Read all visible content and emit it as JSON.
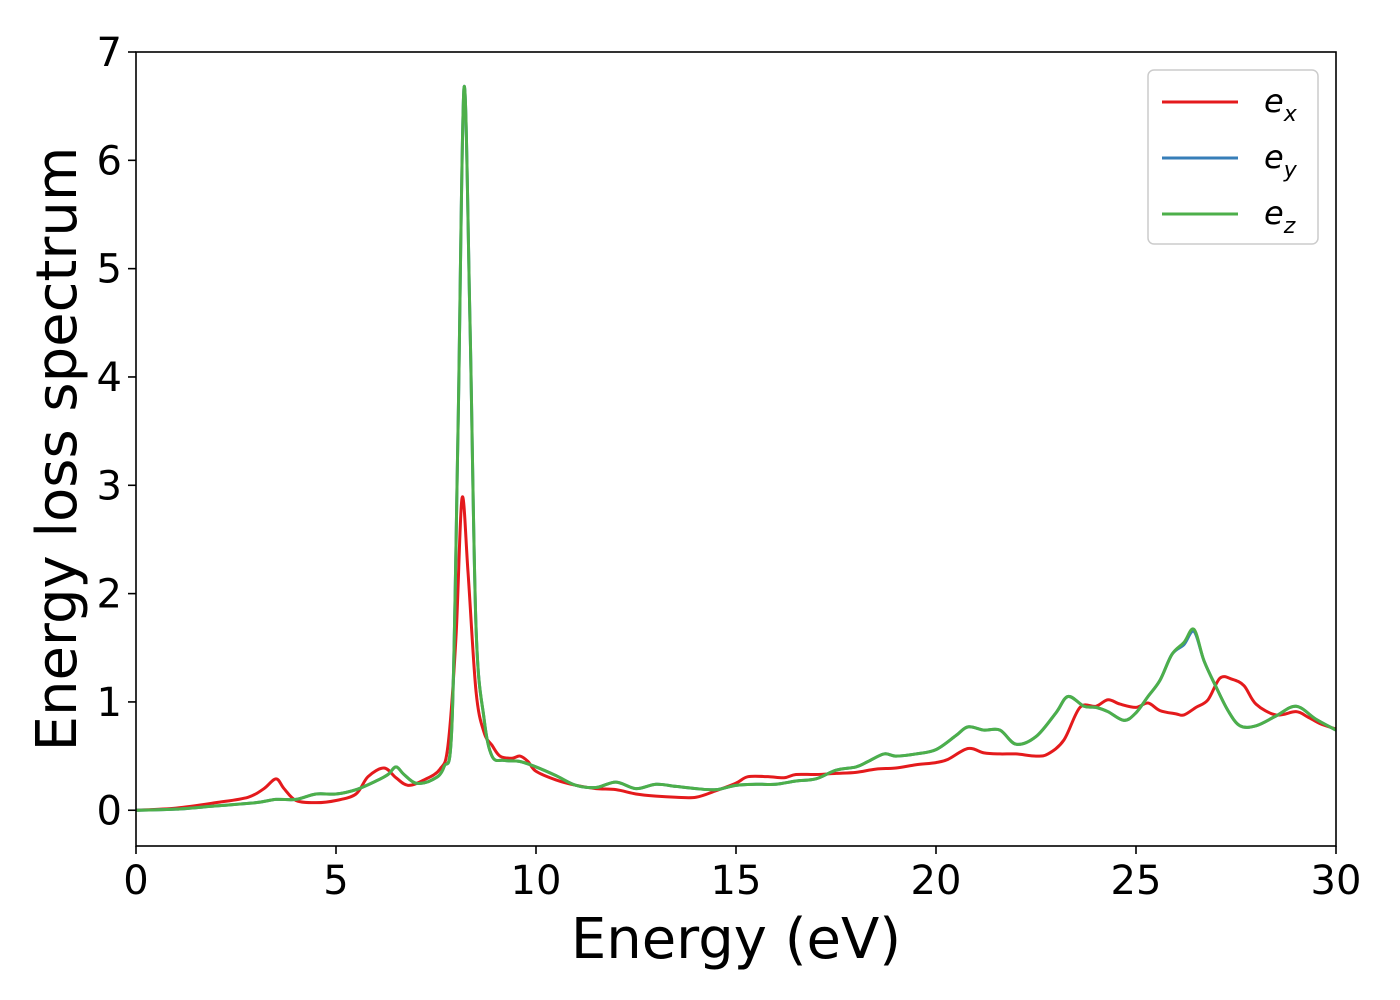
{
  "chart_data": {
    "type": "line",
    "title": "",
    "xlabel": "Energy (eV)",
    "ylabel": "Energy loss spectrum",
    "xlim": [
      0,
      30
    ],
    "ylim": [
      -0.33,
      7
    ],
    "xticks": [
      0,
      5,
      10,
      15,
      20,
      25,
      30
    ],
    "yticks": [
      0,
      1,
      2,
      3,
      4,
      5,
      6,
      7
    ],
    "grid": false,
    "legend_position": "top-right",
    "series": [
      {
        "name": "e_x",
        "label_base": "e",
        "label_sub": "x",
        "color": "#e41a1c",
        "points": [
          [
            0,
            0
          ],
          [
            1,
            0.02
          ],
          [
            2,
            0.07
          ],
          [
            2.8,
            0.12
          ],
          [
            3.2,
            0.2
          ],
          [
            3.5,
            0.29
          ],
          [
            3.7,
            0.2
          ],
          [
            4,
            0.09
          ],
          [
            4.5,
            0.07
          ],
          [
            5,
            0.09
          ],
          [
            5.5,
            0.15
          ],
          [
            5.8,
            0.31
          ],
          [
            6.2,
            0.39
          ],
          [
            6.5,
            0.3
          ],
          [
            6.8,
            0.23
          ],
          [
            7.2,
            0.28
          ],
          [
            7.6,
            0.38
          ],
          [
            7.8,
            0.6
          ],
          [
            8.0,
            1.6
          ],
          [
            8.15,
            2.88
          ],
          [
            8.3,
            2.2
          ],
          [
            8.5,
            1.1
          ],
          [
            8.7,
            0.72
          ],
          [
            8.9,
            0.6
          ],
          [
            9.1,
            0.5
          ],
          [
            9.4,
            0.48
          ],
          [
            9.6,
            0.5
          ],
          [
            9.8,
            0.45
          ],
          [
            10,
            0.36
          ],
          [
            10.5,
            0.28
          ],
          [
            11,
            0.23
          ],
          [
            11.5,
            0.2
          ],
          [
            12,
            0.19
          ],
          [
            12.5,
            0.15
          ],
          [
            13,
            0.13
          ],
          [
            13.5,
            0.12
          ],
          [
            14,
            0.12
          ],
          [
            14.5,
            0.18
          ],
          [
            15,
            0.25
          ],
          [
            15.3,
            0.31
          ],
          [
            15.8,
            0.31
          ],
          [
            16.2,
            0.3
          ],
          [
            16.5,
            0.33
          ],
          [
            17,
            0.33
          ],
          [
            17.5,
            0.34
          ],
          [
            18,
            0.35
          ],
          [
            18.5,
            0.38
          ],
          [
            19,
            0.39
          ],
          [
            19.5,
            0.42
          ],
          [
            20,
            0.44
          ],
          [
            20.3,
            0.47
          ],
          [
            20.8,
            0.57
          ],
          [
            21.2,
            0.53
          ],
          [
            21.6,
            0.52
          ],
          [
            22,
            0.52
          ],
          [
            22.5,
            0.5
          ],
          [
            22.8,
            0.52
          ],
          [
            23.2,
            0.65
          ],
          [
            23.6,
            0.95
          ],
          [
            24,
            0.96
          ],
          [
            24.3,
            1.02
          ],
          [
            24.6,
            0.98
          ],
          [
            25,
            0.95
          ],
          [
            25.3,
            0.99
          ],
          [
            25.6,
            0.92
          ],
          [
            26,
            0.89
          ],
          [
            26.2,
            0.88
          ],
          [
            26.5,
            0.95
          ],
          [
            26.8,
            1.02
          ],
          [
            27.1,
            1.22
          ],
          [
            27.4,
            1.21
          ],
          [
            27.7,
            1.15
          ],
          [
            28,
            0.98
          ],
          [
            28.5,
            0.88
          ],
          [
            29,
            0.91
          ],
          [
            29.3,
            0.86
          ],
          [
            29.6,
            0.8
          ],
          [
            30,
            0.75
          ]
        ]
      },
      {
        "name": "e_y",
        "label_base": "e",
        "label_sub": "y",
        "color": "#377eb8",
        "points": [
          [
            0,
            0
          ],
          [
            1,
            0.01
          ],
          [
            2,
            0.04
          ],
          [
            3,
            0.07
          ],
          [
            3.5,
            0.1
          ],
          [
            4,
            0.1
          ],
          [
            4.5,
            0.15
          ],
          [
            5,
            0.15
          ],
          [
            5.5,
            0.19
          ],
          [
            6,
            0.27
          ],
          [
            6.3,
            0.33
          ],
          [
            6.5,
            0.4
          ],
          [
            6.7,
            0.33
          ],
          [
            7,
            0.25
          ],
          [
            7.4,
            0.28
          ],
          [
            7.7,
            0.4
          ],
          [
            7.9,
            0.8
          ],
          [
            8.05,
            3.5
          ],
          [
            8.2,
            6.67
          ],
          [
            8.35,
            4.5
          ],
          [
            8.5,
            1.7
          ],
          [
            8.7,
            0.85
          ],
          [
            8.9,
            0.5
          ],
          [
            9.2,
            0.46
          ],
          [
            9.6,
            0.45
          ],
          [
            10,
            0.4
          ],
          [
            10.5,
            0.32
          ],
          [
            11,
            0.23
          ],
          [
            11.5,
            0.21
          ],
          [
            12,
            0.26
          ],
          [
            12.5,
            0.2
          ],
          [
            13,
            0.24
          ],
          [
            13.5,
            0.22
          ],
          [
            14,
            0.2
          ],
          [
            14.5,
            0.19
          ],
          [
            15,
            0.23
          ],
          [
            15.5,
            0.24
          ],
          [
            16,
            0.24
          ],
          [
            16.5,
            0.27
          ],
          [
            17,
            0.29
          ],
          [
            17.5,
            0.37
          ],
          [
            18,
            0.4
          ],
          [
            18.3,
            0.45
          ],
          [
            18.7,
            0.52
          ],
          [
            19,
            0.5
          ],
          [
            19.5,
            0.52
          ],
          [
            20,
            0.56
          ],
          [
            20.5,
            0.69
          ],
          [
            20.8,
            0.77
          ],
          [
            21.2,
            0.74
          ],
          [
            21.6,
            0.74
          ],
          [
            22,
            0.61
          ],
          [
            22.5,
            0.68
          ],
          [
            23,
            0.9
          ],
          [
            23.3,
            1.05
          ],
          [
            23.7,
            0.96
          ],
          [
            24,
            0.95
          ],
          [
            24.3,
            0.91
          ],
          [
            24.7,
            0.83
          ],
          [
            25,
            0.9
          ],
          [
            25.3,
            1.05
          ],
          [
            25.6,
            1.2
          ],
          [
            25.9,
            1.44
          ],
          [
            26.2,
            1.53
          ],
          [
            26.45,
            1.65
          ],
          [
            26.7,
            1.38
          ],
          [
            27,
            1.14
          ],
          [
            27.3,
            0.92
          ],
          [
            27.6,
            0.78
          ],
          [
            28,
            0.78
          ],
          [
            28.5,
            0.87
          ],
          [
            29,
            0.96
          ],
          [
            29.5,
            0.84
          ],
          [
            30,
            0.74
          ]
        ]
      },
      {
        "name": "e_z",
        "label_base": "e",
        "label_sub": "z",
        "color": "#4daf4a",
        "points": [
          [
            0,
            0
          ],
          [
            1,
            0.01
          ],
          [
            2,
            0.04
          ],
          [
            3,
            0.07
          ],
          [
            3.5,
            0.1
          ],
          [
            4,
            0.1
          ],
          [
            4.5,
            0.15
          ],
          [
            5,
            0.15
          ],
          [
            5.5,
            0.19
          ],
          [
            6,
            0.27
          ],
          [
            6.3,
            0.33
          ],
          [
            6.5,
            0.4
          ],
          [
            6.7,
            0.33
          ],
          [
            7,
            0.25
          ],
          [
            7.4,
            0.28
          ],
          [
            7.7,
            0.4
          ],
          [
            7.9,
            0.8
          ],
          [
            8.05,
            3.5
          ],
          [
            8.2,
            6.67
          ],
          [
            8.35,
            4.5
          ],
          [
            8.5,
            1.7
          ],
          [
            8.7,
            0.85
          ],
          [
            8.9,
            0.5
          ],
          [
            9.2,
            0.46
          ],
          [
            9.6,
            0.45
          ],
          [
            10,
            0.4
          ],
          [
            10.5,
            0.32
          ],
          [
            11,
            0.23
          ],
          [
            11.5,
            0.21
          ],
          [
            12,
            0.26
          ],
          [
            12.5,
            0.2
          ],
          [
            13,
            0.24
          ],
          [
            13.5,
            0.22
          ],
          [
            14,
            0.2
          ],
          [
            14.5,
            0.19
          ],
          [
            15,
            0.23
          ],
          [
            15.5,
            0.24
          ],
          [
            16,
            0.24
          ],
          [
            16.5,
            0.27
          ],
          [
            17,
            0.29
          ],
          [
            17.5,
            0.37
          ],
          [
            18,
            0.4
          ],
          [
            18.3,
            0.45
          ],
          [
            18.7,
            0.52
          ],
          [
            19,
            0.5
          ],
          [
            19.5,
            0.52
          ],
          [
            20,
            0.56
          ],
          [
            20.5,
            0.69
          ],
          [
            20.8,
            0.77
          ],
          [
            21.2,
            0.74
          ],
          [
            21.6,
            0.74
          ],
          [
            22,
            0.61
          ],
          [
            22.5,
            0.68
          ],
          [
            23,
            0.9
          ],
          [
            23.3,
            1.05
          ],
          [
            23.7,
            0.96
          ],
          [
            24,
            0.95
          ],
          [
            24.3,
            0.91
          ],
          [
            24.7,
            0.83
          ],
          [
            25,
            0.9
          ],
          [
            25.3,
            1.05
          ],
          [
            25.6,
            1.2
          ],
          [
            25.9,
            1.44
          ],
          [
            26.2,
            1.55
          ],
          [
            26.45,
            1.67
          ],
          [
            26.7,
            1.38
          ],
          [
            27,
            1.14
          ],
          [
            27.3,
            0.92
          ],
          [
            27.6,
            0.78
          ],
          [
            28,
            0.78
          ],
          [
            28.5,
            0.87
          ],
          [
            29,
            0.96
          ],
          [
            29.5,
            0.84
          ],
          [
            30,
            0.74
          ]
        ]
      }
    ]
  }
}
